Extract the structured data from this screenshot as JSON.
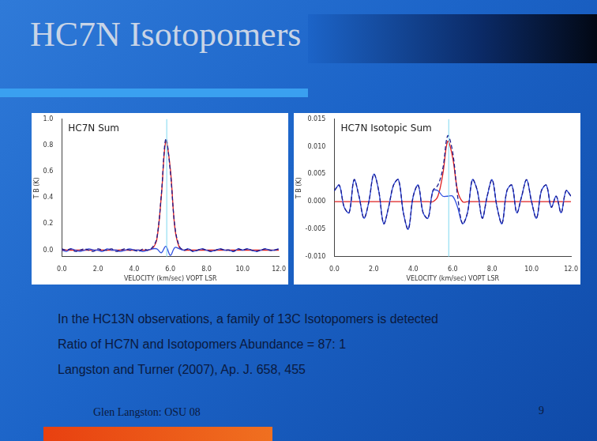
{
  "slide": {
    "title": "HC7N Isotopomers",
    "lines": [
      "In the HC13N observations, a family of 13C Isotopomers is detected",
      "Ratio of HC7N and Isotopomers Abundance =   87: 1",
      "Langston and Turner (2007), Ap. J. 658, 455"
    ],
    "footer": "Glen Langston: OSU 08",
    "page": "9"
  },
  "chart_data": [
    {
      "type": "line",
      "title": "HC7N Sum",
      "x_label": "VELOCITY (km/sec) VOPT LSR",
      "y_label": "T B (K)",
      "xlim": [
        0,
        12
      ],
      "xticks": [
        {
          "value": 0,
          "label": "0.0"
        },
        {
          "value": 2,
          "label": "2.0"
        },
        {
          "value": 4,
          "label": "4.0"
        },
        {
          "value": 6,
          "label": "6.0"
        },
        {
          "value": 8,
          "label": "8.0"
        },
        {
          "value": 10,
          "label": "10.0"
        },
        {
          "value": 12,
          "label": "12.0"
        }
      ],
      "ylim": [
        -0.05,
        1.0
      ],
      "yticks": [
        {
          "value": 0,
          "label": "0.0"
        },
        0.2,
        0.4,
        0.6,
        0.8,
        {
          "value": 1.0,
          "label": "1.0"
        }
      ],
      "reference_x": 5.8,
      "x": [
        0,
        0.25,
        0.5,
        0.75,
        1,
        1.25,
        1.5,
        1.75,
        2,
        2.25,
        2.5,
        2.75,
        3,
        3.25,
        3.5,
        3.75,
        4,
        4.25,
        4.5,
        4.75,
        5,
        5.25,
        5.5,
        5.75,
        6,
        6.25,
        6.5,
        6.75,
        7,
        7.25,
        7.5,
        7.75,
        8,
        8.25,
        8.5,
        8.75,
        9,
        9.25,
        9.5,
        9.75,
        10,
        10.25,
        10.5,
        10.75,
        11,
        11.25,
        11.5,
        11.75,
        12
      ],
      "series": [
        {
          "color": "#1a1a8c",
          "line_style": "dashed",
          "values": [
            0.01,
            0.0,
            0.01,
            -0.01,
            0.0,
            0.01,
            0.0,
            -0.01,
            0.01,
            0.0,
            0.0,
            0.01,
            -0.01,
            0.0,
            0.01,
            0.0,
            0.0,
            -0.01,
            0.01,
            0.0,
            0.02,
            0.09,
            0.42,
            0.85,
            0.6,
            0.18,
            0.03,
            0.0,
            0.01,
            -0.01,
            0.0,
            0.01,
            0.0,
            -0.01,
            0.0,
            0.01,
            0.0,
            0.0,
            -0.01,
            0.01,
            0.0,
            0.01,
            0.0,
            -0.01,
            0.0,
            0.01,
            0.0,
            0.0,
            0.01
          ]
        },
        {
          "color": "#3050e0",
          "line_style": "solid",
          "values": [
            0.0,
            -0.01,
            0.01,
            0.0,
            -0.01,
            0.0,
            0.01,
            0.0,
            0.0,
            -0.01,
            0.01,
            0.0,
            0.0,
            -0.01,
            0.0,
            0.01,
            0.0,
            0.0,
            -0.01,
            0.0,
            0.01,
            0.01,
            -0.02,
            0.03,
            -0.04,
            0.02,
            0.01,
            0.0,
            0.01,
            -0.01,
            0.0,
            0.01,
            0.0,
            -0.01,
            0.0,
            0.01,
            0.0,
            0.0,
            -0.01,
            0.01,
            0.0,
            0.01,
            0.0,
            -0.01,
            0.0,
            0.01,
            0.0,
            0.0,
            0.01
          ]
        },
        {
          "color": "#e02020",
          "line_style": "solid",
          "values": [
            0,
            0,
            0,
            0,
            0,
            0,
            0,
            0,
            0,
            0,
            0,
            0,
            0,
            0,
            0,
            0,
            0,
            0,
            0,
            0,
            0.01,
            0.08,
            0.41,
            0.83,
            0.62,
            0.17,
            0.02,
            0,
            0,
            0,
            0,
            0,
            0,
            0,
            0,
            0,
            0,
            0,
            0,
            0,
            0,
            0,
            0,
            0,
            0,
            0,
            0,
            0,
            0
          ]
        }
      ]
    },
    {
      "type": "line",
      "title": "HC7N Isotopic Sum",
      "x_label": "VELOCITY (km/sec) VOPT LSR",
      "y_label": "T B (K)",
      "xlim": [
        0,
        12
      ],
      "xticks": [
        {
          "value": 0,
          "label": "0.0"
        },
        {
          "value": 2,
          "label": "2.0"
        },
        {
          "value": 4,
          "label": "4.0"
        },
        {
          "value": 6,
          "label": "6.0"
        },
        {
          "value": 8,
          "label": "8.0"
        },
        {
          "value": 10,
          "label": "10.0"
        },
        {
          "value": 12,
          "label": "12.0"
        }
      ],
      "ylim": [
        -0.01,
        0.015
      ],
      "yticks": [
        {
          "value": -0.01,
          "label": "-0.010"
        },
        -0.005,
        {
          "value": 0,
          "label": "0.000"
        },
        0.005,
        {
          "value": 0.01,
          "label": "0.010"
        },
        0.015
      ],
      "reference_x": 5.8,
      "x": [
        0,
        0.25,
        0.5,
        0.75,
        1,
        1.25,
        1.5,
        1.75,
        2,
        2.25,
        2.5,
        2.75,
        3,
        3.25,
        3.5,
        3.75,
        4,
        4.25,
        4.5,
        4.75,
        5,
        5.25,
        5.5,
        5.75,
        6,
        6.25,
        6.5,
        6.75,
        7,
        7.25,
        7.5,
        7.75,
        8,
        8.25,
        8.5,
        8.75,
        9,
        9.25,
        9.5,
        9.75,
        10,
        10.25,
        10.5,
        10.75,
        11,
        11.25,
        11.5,
        11.75,
        12
      ],
      "series": [
        {
          "color": "#1a1a8c",
          "line_style": "dashed",
          "values": [
            0.002,
            0.003,
            -0.001,
            -0.002,
            0.004,
            0.001,
            -0.003,
            0.0,
            0.005,
            0.002,
            -0.004,
            -0.001,
            0.003,
            0.004,
            -0.002,
            -0.005,
            0.001,
            0.003,
            -0.002,
            -0.003,
            0.002,
            0.003,
            0.006,
            0.012,
            0.009,
            0.001,
            -0.004,
            -0.002,
            0.004,
            0.002,
            -0.003,
            0.001,
            0.004,
            -0.001,
            -0.004,
            0.002,
            0.003,
            -0.002,
            0.001,
            0.004,
            0.0,
            -0.003,
            0.002,
            0.003,
            -0.001,
            0.001,
            -0.002,
            0.002,
            0.001
          ]
        },
        {
          "color": "#3050e0",
          "line_style": "solid",
          "values": [
            0.002,
            0.003,
            -0.001,
            -0.002,
            0.004,
            0.001,
            -0.003,
            0.0,
            0.005,
            0.002,
            -0.004,
            -0.001,
            0.003,
            0.004,
            -0.002,
            -0.005,
            0.001,
            0.003,
            -0.002,
            -0.003,
            0.002,
            0.002,
            0.001,
            0.001,
            0.001,
            -0.001,
            -0.004,
            -0.002,
            0.004,
            0.002,
            -0.003,
            0.001,
            0.004,
            -0.001,
            -0.004,
            0.002,
            0.003,
            -0.002,
            0.001,
            0.004,
            0.0,
            -0.003,
            0.002,
            0.003,
            -0.001,
            0.001,
            -0.002,
            0.002,
            0.001
          ]
        },
        {
          "color": "#e02020",
          "line_style": "solid",
          "values": [
            0,
            0,
            0,
            0,
            0,
            0,
            0,
            0,
            0,
            0,
            0,
            0,
            0,
            0,
            0,
            0,
            0,
            0,
            0,
            0,
            0,
            0.001,
            0.005,
            0.011,
            0.008,
            0.002,
            0,
            0,
            0,
            0,
            0,
            0,
            0,
            0,
            0,
            0,
            0,
            0,
            0,
            0,
            0,
            0,
            0,
            0,
            0,
            0,
            0,
            0,
            0
          ]
        }
      ]
    }
  ]
}
